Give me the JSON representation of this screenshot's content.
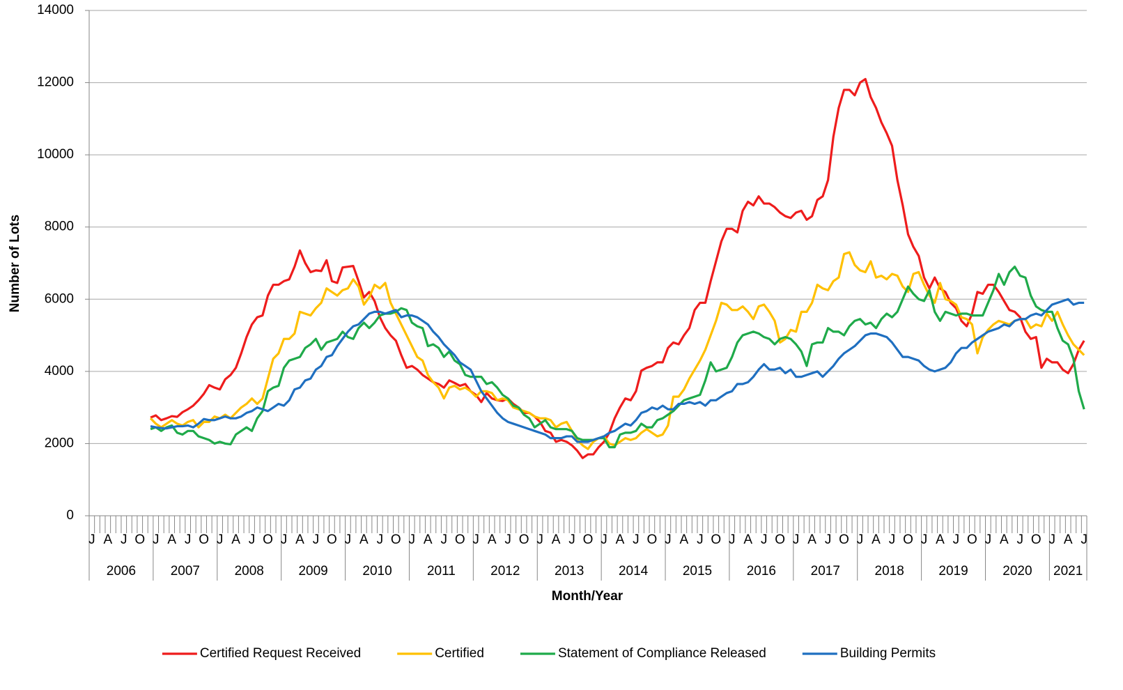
{
  "chart_data": {
    "type": "line",
    "x_label": "Month/Year",
    "y_label": "Number of Lots",
    "categories": [
      "J",
      null,
      null,
      "A",
      null,
      null,
      "J",
      null,
      null,
      "O",
      null,
      null,
      "J",
      null,
      null,
      "A",
      null,
      null,
      "J",
      null,
      null,
      "O",
      null,
      null,
      "J",
      null,
      null,
      "A",
      null,
      null,
      "J",
      null,
      null,
      "O",
      null,
      null,
      "J",
      null,
      null,
      "A",
      null,
      null,
      "J",
      null,
      null,
      "O",
      null,
      null,
      "J",
      null,
      null,
      "A",
      null,
      null,
      "J",
      null,
      null,
      "O",
      null,
      null,
      "J",
      null,
      null,
      "A",
      null,
      null,
      "J",
      null,
      null,
      "O",
      null,
      null,
      "J",
      null,
      null,
      "A",
      null,
      null,
      "J",
      null,
      null,
      "O",
      null,
      null,
      "J",
      null,
      null,
      "A",
      null,
      null,
      "J",
      null,
      null,
      "O",
      null,
      null,
      "J",
      null,
      null,
      "A",
      null,
      null,
      "J",
      null,
      null,
      "O",
      null,
      null,
      "J",
      null,
      null,
      "A",
      null,
      null,
      "J",
      null,
      null,
      "O",
      null,
      null,
      "J",
      null,
      null,
      "A",
      null,
      null,
      "J",
      null,
      null,
      "O",
      null,
      null,
      "J",
      null,
      null,
      "A",
      null,
      null,
      "J",
      null,
      null,
      "O",
      null,
      null,
      "J",
      null,
      null,
      "A",
      null,
      null,
      "J",
      null,
      null,
      "O",
      null,
      null,
      "J",
      null,
      null,
      "A",
      null,
      null,
      "J",
      null,
      null,
      "O",
      null,
      null,
      "J",
      null,
      null,
      "A",
      null,
      null,
      "J",
      null,
      null,
      "O",
      null,
      null,
      "J",
      null,
      null,
      "A",
      null,
      null,
      "J"
    ],
    "x_groups": [
      "2006",
      "2007",
      "2008",
      "2009",
      "2010",
      "2011",
      "2012",
      "2013",
      "2014",
      "2015",
      "2016",
      "2017",
      "2018",
      "2019",
      "2020",
      "2021"
    ],
    "ylim": [
      0,
      14000
    ],
    "yticks": [
      0,
      2000,
      4000,
      6000,
      8000,
      10000,
      12000,
      14000
    ],
    "grid": true,
    "legend": "bottom",
    "series": [
      {
        "name": "Certified Request Received",
        "color": "#ee1c1c",
        "values": [
          null,
          null,
          null,
          null,
          null,
          null,
          null,
          null,
          null,
          null,
          null,
          2720,
          2780,
          2650,
          2700,
          2760,
          2740,
          2870,
          2950,
          3050,
          3200,
          3380,
          3620,
          3550,
          3500,
          3780,
          3900,
          4100,
          4500,
          4950,
          5300,
          5500,
          5550,
          6100,
          6400,
          6400,
          6500,
          6550,
          6900,
          7350,
          7000,
          6750,
          6800,
          6780,
          7080,
          6500,
          6450,
          6880,
          6900,
          6920,
          6500,
          6050,
          6200,
          5950,
          5500,
          5200,
          5000,
          4850,
          4450,
          4100,
          4150,
          4050,
          3900,
          3800,
          3700,
          3650,
          3550,
          3750,
          3680,
          3600,
          3650,
          3450,
          3350,
          3150,
          3400,
          3250,
          3200,
          3180,
          3250,
          3100,
          3000,
          2850,
          2850,
          2750,
          2600,
          2350,
          2300,
          2050,
          2100,
          2050,
          1950,
          1800,
          1600,
          1700,
          1700,
          1900,
          2050,
          2300,
          2700,
          3000,
          3250,
          3200,
          3450,
          4020,
          4100,
          4150,
          4250,
          4250,
          4650,
          4800,
          4750,
          5000,
          5200,
          5700,
          5900,
          5900,
          6500,
          7050,
          7600,
          7950,
          7950,
          7850,
          8450,
          8700,
          8600,
          8850,
          8650,
          8650,
          8550,
          8400,
          8300,
          8250,
          8400,
          8450,
          8200,
          8300,
          8750,
          8850,
          9300,
          10500,
          11300,
          11800,
          11800,
          11650,
          12000,
          12100,
          11600,
          11300,
          10900,
          10600,
          10250,
          9300,
          8600,
          7800,
          7450,
          7200,
          6600,
          6300,
          6600,
          6300,
          6200,
          5900,
          5750,
          5400,
          5250,
          5600,
          6200,
          6150,
          6400,
          6400,
          6200,
          5950,
          5700,
          5650,
          5500,
          5100,
          4900,
          4950,
          4100,
          4350,
          4250,
          4250,
          4050,
          3950,
          4200,
          4600,
          4850
        ]
      },
      {
        "name": "Certified",
        "color": "#ffc000",
        "values": [
          null,
          null,
          null,
          null,
          null,
          null,
          null,
          null,
          null,
          null,
          null,
          2700,
          2550,
          2450,
          2550,
          2650,
          2550,
          2500,
          2600,
          2650,
          2450,
          2600,
          2600,
          2750,
          2700,
          2800,
          2700,
          2850,
          3000,
          3100,
          3250,
          3100,
          3250,
          3800,
          4350,
          4500,
          4900,
          4900,
          5050,
          5650,
          5600,
          5550,
          5750,
          5900,
          6300,
          6200,
          6100,
          6250,
          6300,
          6550,
          6350,
          5850,
          6050,
          6400,
          6300,
          6450,
          5900,
          5600,
          5300,
          5000,
          4700,
          4400,
          4300,
          3900,
          3700,
          3550,
          3250,
          3550,
          3600,
          3500,
          3550,
          3450,
          3300,
          3450,
          3450,
          3400,
          3200,
          3250,
          3200,
          3000,
          2950,
          2900,
          2850,
          2750,
          2700,
          2700,
          2650,
          2450,
          2550,
          2600,
          2350,
          2100,
          1950,
          1850,
          2050,
          2150,
          2200,
          2000,
          1950,
          2050,
          2150,
          2100,
          2150,
          2300,
          2400,
          2300,
          2200,
          2250,
          2500,
          3300,
          3300,
          3500,
          3800,
          4050,
          4300,
          4600,
          5000,
          5400,
          5900,
          5850,
          5700,
          5700,
          5800,
          5650,
          5450,
          5800,
          5850,
          5650,
          5400,
          4800,
          4900,
          5150,
          5100,
          5650,
          5650,
          5900,
          6400,
          6300,
          6250,
          6500,
          6600,
          7250,
          7300,
          6950,
          6800,
          6750,
          7050,
          6600,
          6650,
          6550,
          6700,
          6650,
          6350,
          6200,
          6700,
          6750,
          6400,
          6100,
          5900,
          6450,
          6000,
          5950,
          5850,
          5500,
          5450,
          5300,
          4500,
          4950,
          5150,
          5300,
          5400,
          5350,
          5300,
          5400,
          5450,
          5450,
          5200,
          5300,
          5250,
          5600,
          5400,
          5650,
          5300,
          5000,
          4750,
          4600,
          4450
        ]
      },
      {
        "name": "Statement of Compliance Released",
        "color": "#1faa4a",
        "values": [
          null,
          null,
          null,
          null,
          null,
          null,
          null,
          null,
          null,
          null,
          null,
          2400,
          2450,
          2350,
          2450,
          2500,
          2300,
          2250,
          2350,
          2350,
          2200,
          2150,
          2100,
          2000,
          2050,
          2000,
          1980,
          2250,
          2350,
          2450,
          2350,
          2700,
          2900,
          3450,
          3550,
          3600,
          4100,
          4300,
          4350,
          4400,
          4650,
          4750,
          4900,
          4600,
          4800,
          4850,
          4900,
          5100,
          4950,
          4900,
          5200,
          5350,
          5200,
          5350,
          5550,
          5600,
          5600,
          5650,
          5750,
          5700,
          5350,
          5250,
          5200,
          4700,
          4750,
          4650,
          4400,
          4550,
          4300,
          4200,
          3900,
          3850,
          3850,
          3850,
          3650,
          3700,
          3550,
          3350,
          3250,
          3050,
          3000,
          2800,
          2700,
          2450,
          2550,
          2650,
          2450,
          2400,
          2400,
          2400,
          2350,
          2150,
          2100,
          2100,
          2100,
          2150,
          2150,
          1900,
          1900,
          2250,
          2300,
          2300,
          2350,
          2550,
          2450,
          2450,
          2650,
          2700,
          2800,
          2900,
          3050,
          3200,
          3250,
          3300,
          3350,
          3750,
          4250,
          4000,
          4050,
          4100,
          4400,
          4800,
          5000,
          5050,
          5100,
          5050,
          4950,
          4900,
          4750,
          4900,
          4950,
          4900,
          4750,
          4550,
          4150,
          4750,
          4800,
          4800,
          5200,
          5100,
          5100,
          5000,
          5250,
          5400,
          5450,
          5300,
          5350,
          5200,
          5450,
          5600,
          5500,
          5650,
          6000,
          6350,
          6150,
          6000,
          5950,
          6250,
          5650,
          5400,
          5650,
          5600,
          5550,
          5600,
          5600,
          5550,
          5550,
          5550,
          5900,
          6250,
          6700,
          6400,
          6750,
          6900,
          6650,
          6600,
          6100,
          5800,
          5700,
          5650,
          5650,
          5200,
          4850,
          4750,
          4350,
          3450,
          2950
        ]
      },
      {
        "name": "Building Permits",
        "color": "#1f6fc0",
        "values": [
          null,
          null,
          null,
          null,
          null,
          null,
          null,
          null,
          null,
          null,
          null,
          2480,
          2450,
          2430,
          2420,
          2450,
          2480,
          2480,
          2500,
          2450,
          2550,
          2680,
          2650,
          2650,
          2700,
          2750,
          2700,
          2700,
          2750,
          2850,
          2900,
          3000,
          2950,
          2900,
          3000,
          3100,
          3050,
          3200,
          3500,
          3550,
          3750,
          3800,
          4050,
          4150,
          4400,
          4450,
          4700,
          4900,
          5100,
          5250,
          5300,
          5450,
          5600,
          5650,
          5650,
          5600,
          5650,
          5700,
          5500,
          5550,
          5550,
          5500,
          5400,
          5300,
          5100,
          4950,
          4750,
          4600,
          4450,
          4250,
          4150,
          4050,
          3750,
          3450,
          3250,
          3050,
          2850,
          2700,
          2600,
          2550,
          2500,
          2450,
          2400,
          2350,
          2300,
          2250,
          2150,
          2150,
          2150,
          2200,
          2200,
          2050,
          2050,
          2050,
          2100,
          2150,
          2200,
          2300,
          2350,
          2450,
          2550,
          2500,
          2650,
          2850,
          2900,
          3000,
          2950,
          3050,
          2950,
          2950,
          3100,
          3100,
          3150,
          3100,
          3150,
          3050,
          3200,
          3200,
          3300,
          3400,
          3450,
          3650,
          3650,
          3700,
          3850,
          4050,
          4200,
          4050,
          4050,
          4100,
          3950,
          4050,
          3850,
          3850,
          3900,
          3950,
          4000,
          3850,
          4000,
          4150,
          4350,
          4500,
          4600,
          4700,
          4850,
          5000,
          5050,
          5050,
          5000,
          4950,
          4800,
          4600,
          4400,
          4400,
          4350,
          4300,
          4150,
          4050,
          4000,
          4050,
          4100,
          4250,
          4500,
          4650,
          4650,
          4800,
          4900,
          5000,
          5100,
          5150,
          5200,
          5300,
          5250,
          5400,
          5450,
          5450,
          5550,
          5600,
          5550,
          5700,
          5850,
          5900,
          5950,
          6000,
          5850,
          5900,
          5900
        ]
      }
    ]
  }
}
